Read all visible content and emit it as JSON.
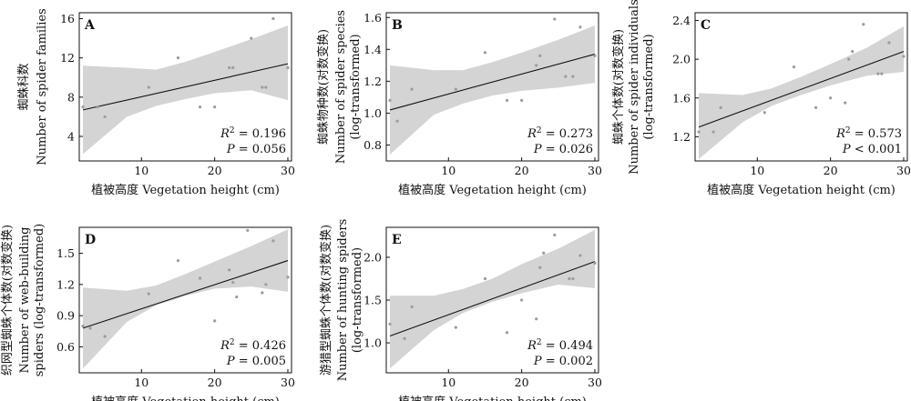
{
  "chart_data": [
    {
      "panel": "A",
      "type": "scatter",
      "xlabel": "植被高度 Vegetation height (cm)",
      "ylabel_cn": "蜘蛛科数",
      "ylabel_en": [
        "Number of spider families"
      ],
      "xlim": [
        1.5,
        30.5
      ],
      "ylim": [
        1.5,
        16.6
      ],
      "xticks": [
        10,
        20,
        30
      ],
      "yticks": [
        4,
        8,
        12,
        16
      ],
      "ytick_labels": [
        "4",
        "8",
        "12",
        "16"
      ],
      "r2_value": "0.196",
      "p_text": "= 0.056",
      "fit": {
        "x": [
          2,
          30
        ],
        "y": [
          6.7,
          11.4
        ]
      },
      "band_upper": [
        [
          2,
          11.2
        ],
        [
          8,
          11.0
        ],
        [
          12,
          10.8
        ],
        [
          16,
          11.6
        ],
        [
          20,
          12.6
        ],
        [
          25,
          13.9
        ],
        [
          30,
          15.3
        ]
      ],
      "band_lower": [
        [
          2,
          2.2
        ],
        [
          8,
          6.0
        ],
        [
          12,
          7.1
        ],
        [
          16,
          7.8
        ],
        [
          20,
          8.4
        ],
        [
          25,
          8.7
        ],
        [
          30,
          7.7
        ]
      ],
      "points": [
        [
          2,
          7
        ],
        [
          4,
          7
        ],
        [
          5,
          6
        ],
        [
          11,
          9
        ],
        [
          15,
          12
        ],
        [
          18,
          7
        ],
        [
          20,
          7
        ],
        [
          22,
          11
        ],
        [
          22.5,
          11
        ],
        [
          25,
          14
        ],
        [
          26.5,
          9
        ],
        [
          27,
          9
        ],
        [
          28,
          16
        ],
        [
          30,
          11
        ]
      ]
    },
    {
      "panel": "B",
      "type": "scatter",
      "xlabel": "植被高度 Vegetation height (cm)",
      "ylabel_cn": "蜘蛛物种数(对数变换)",
      "ylabel_en": [
        "Number of spider species",
        "(log-transformed)"
      ],
      "xlim": [
        1.5,
        30.5
      ],
      "ylim": [
        0.7,
        1.63
      ],
      "xticks": [
        10,
        20,
        30
      ],
      "yticks": [
        0.8,
        1.0,
        1.2,
        1.4,
        1.6
      ],
      "ytick_labels": [
        "0.8",
        "1.0",
        "1.2",
        "1.4",
        "1.6"
      ],
      "r2_value": "0.273",
      "p_text": "= 0.026",
      "fit": {
        "x": [
          2,
          30
        ],
        "y": [
          1.02,
          1.37
        ]
      },
      "band_upper": [
        [
          2,
          1.3
        ],
        [
          8,
          1.27
        ],
        [
          12,
          1.27
        ],
        [
          16,
          1.32
        ],
        [
          20,
          1.38
        ],
        [
          25,
          1.46
        ],
        [
          30,
          1.55
        ]
      ],
      "band_lower": [
        [
          2,
          0.74
        ],
        [
          8,
          0.99
        ],
        [
          12,
          1.06
        ],
        [
          16,
          1.11
        ],
        [
          20,
          1.14
        ],
        [
          25,
          1.16
        ],
        [
          30,
          1.19
        ]
      ],
      "points": [
        [
          2,
          1.08
        ],
        [
          3,
          0.95
        ],
        [
          5,
          1.15
        ],
        [
          11,
          1.15
        ],
        [
          15,
          1.38
        ],
        [
          18,
          1.08
        ],
        [
          20,
          1.08
        ],
        [
          22,
          1.3
        ],
        [
          22.5,
          1.36
        ],
        [
          24.5,
          1.59
        ],
        [
          26,
          1.23
        ],
        [
          27,
          1.23
        ],
        [
          28,
          1.54
        ],
        [
          30,
          1.36
        ]
      ]
    },
    {
      "panel": "C",
      "type": "scatter",
      "xlabel": "植被高度 Vegetation height (cm)",
      "ylabel_cn": "蜘蛛个体数(对数变换)",
      "ylabel_en": [
        "Number of spider individuals",
        "(log-transformed)"
      ],
      "xlim": [
        1.5,
        30.5
      ],
      "ylim": [
        0.95,
        2.48
      ],
      "xticks": [
        10,
        20,
        30
      ],
      "yticks": [
        1.2,
        1.6,
        2.0,
        2.4
      ],
      "ytick_labels": [
        "1.2",
        "1.6",
        "2.0",
        "2.4"
      ],
      "r2_value": "0.573",
      "p_text": "< 0.001",
      "fit": {
        "x": [
          2,
          30
        ],
        "y": [
          1.3,
          2.08
        ]
      },
      "band_upper": [
        [
          2,
          1.65
        ],
        [
          8,
          1.63
        ],
        [
          12,
          1.7
        ],
        [
          16,
          1.82
        ],
        [
          20,
          1.95
        ],
        [
          25,
          2.12
        ],
        [
          30,
          2.34
        ]
      ],
      "band_lower": [
        [
          2,
          0.97
        ],
        [
          8,
          1.35
        ],
        [
          12,
          1.52
        ],
        [
          16,
          1.63
        ],
        [
          20,
          1.73
        ],
        [
          25,
          1.83
        ],
        [
          30,
          1.87
        ]
      ],
      "points": [
        [
          2,
          1.25
        ],
        [
          4,
          1.25
        ],
        [
          5,
          1.5
        ],
        [
          11,
          1.45
        ],
        [
          15,
          1.92
        ],
        [
          18,
          1.5
        ],
        [
          20,
          1.6
        ],
        [
          22,
          1.55
        ],
        [
          22.5,
          2.0
        ],
        [
          23,
          2.08
        ],
        [
          24.5,
          2.36
        ],
        [
          26.5,
          1.85
        ],
        [
          27,
          1.85
        ],
        [
          28,
          2.17
        ],
        [
          30,
          2.03
        ]
      ]
    },
    {
      "panel": "D",
      "type": "scatter",
      "xlabel": "植被高度 Vegetation height (cm)",
      "ylabel_cn": "织网型蜘蛛个体数(对数变换)",
      "ylabel_en": [
        "Number of  web-building",
        "spiders (log-transformed)"
      ],
      "xlim": [
        1.5,
        30.5
      ],
      "ylim": [
        0.35,
        1.75
      ],
      "xticks": [
        10,
        20,
        30
      ],
      "yticks": [
        0.6,
        0.9,
        1.2,
        1.5
      ],
      "ytick_labels": [
        "0.6",
        "0.9",
        "1.2",
        "1.5"
      ],
      "r2_value": "0.426",
      "p_text": "= 0.005",
      "fit": {
        "x": [
          2,
          30
        ],
        "y": [
          0.78,
          1.43
        ]
      },
      "band_upper": [
        [
          2,
          1.17
        ],
        [
          8,
          1.14
        ],
        [
          12,
          1.19
        ],
        [
          16,
          1.3
        ],
        [
          20,
          1.42
        ],
        [
          25,
          1.57
        ],
        [
          30,
          1.73
        ]
      ],
      "band_lower": [
        [
          2,
          0.39
        ],
        [
          8,
          0.84
        ],
        [
          12,
          1.0
        ],
        [
          16,
          1.09
        ],
        [
          20,
          1.16
        ],
        [
          25,
          1.18
        ],
        [
          30,
          1.13
        ]
      ],
      "points": [
        [
          2,
          0.8
        ],
        [
          3,
          0.78
        ],
        [
          5,
          0.7
        ],
        [
          11,
          1.11
        ],
        [
          15,
          1.43
        ],
        [
          18,
          1.26
        ],
        [
          20,
          0.85
        ],
        [
          22,
          1.34
        ],
        [
          22.5,
          1.22
        ],
        [
          23,
          1.08
        ],
        [
          24.5,
          1.72
        ],
        [
          26.5,
          1.12
        ],
        [
          27,
          1.2
        ],
        [
          28,
          1.62
        ],
        [
          30,
          1.27
        ]
      ]
    },
    {
      "panel": "E",
      "type": "scatter",
      "xlabel": "植被高度 Vegetation height (cm)",
      "ylabel_cn": "游猎型蜘蛛个体数(对数变换)",
      "ylabel_en": [
        "Number of  hunting spiders",
        "(log-transformed)"
      ],
      "xlim": [
        1.5,
        30.5
      ],
      "ylim": [
        0.65,
        2.35
      ],
      "xticks": [
        10,
        20,
        30
      ],
      "yticks": [
        1.0,
        1.5,
        2.0
      ],
      "ytick_labels": [
        "1.0",
        "1.5",
        "2.0"
      ],
      "r2_value": "0.494",
      "p_text": "= 0.002",
      "fit": {
        "x": [
          2,
          30
        ],
        "y": [
          1.08,
          1.95
        ]
      },
      "band_upper": [
        [
          2,
          1.55
        ],
        [
          8,
          1.55
        ],
        [
          12,
          1.63
        ],
        [
          16,
          1.75
        ],
        [
          20,
          1.92
        ],
        [
          25,
          2.1
        ],
        [
          30,
          2.32
        ]
      ],
      "band_lower": [
        [
          2,
          0.7
        ],
        [
          8,
          1.15
        ],
        [
          12,
          1.35
        ],
        [
          16,
          1.48
        ],
        [
          20,
          1.58
        ],
        [
          25,
          1.68
        ],
        [
          30,
          1.64
        ]
      ],
      "points": [
        [
          2,
          1.22
        ],
        [
          4,
          1.05
        ],
        [
          5,
          1.42
        ],
        [
          11,
          1.18
        ],
        [
          15,
          1.75
        ],
        [
          18,
          1.12
        ],
        [
          20,
          1.5
        ],
        [
          22,
          1.28
        ],
        [
          22.5,
          1.88
        ],
        [
          23,
          2.05
        ],
        [
          24.5,
          2.26
        ],
        [
          26.5,
          1.75
        ],
        [
          27,
          1.75
        ],
        [
          28,
          2.02
        ],
        [
          30,
          1.93
        ]
      ]
    }
  ]
}
